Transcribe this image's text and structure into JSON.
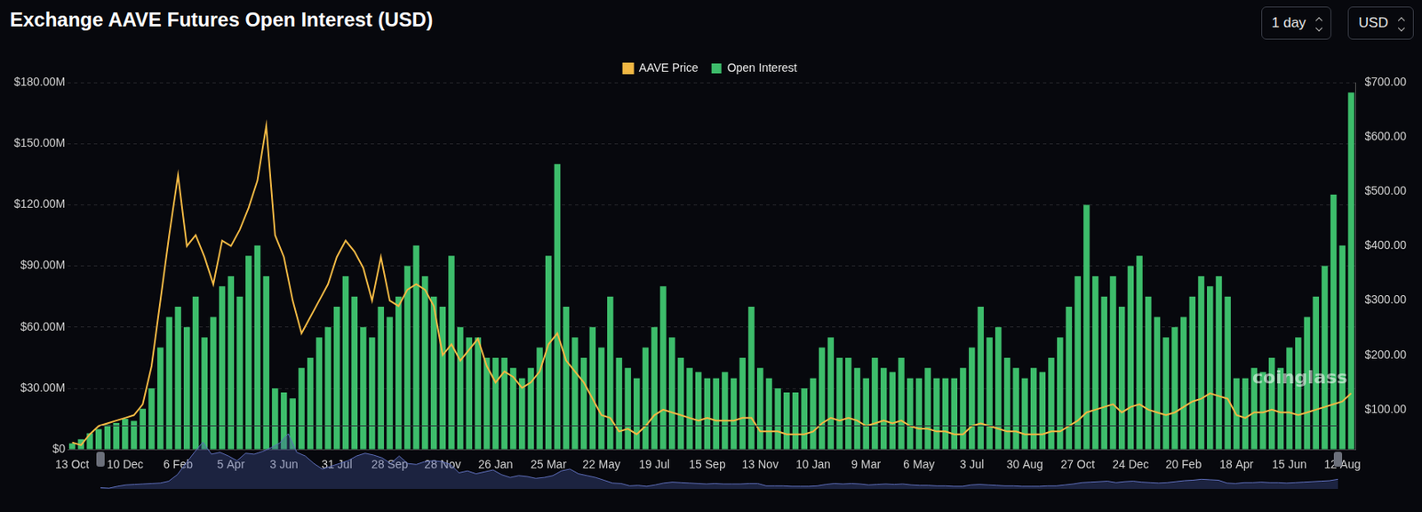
{
  "chart_data": {
    "type": "bar",
    "title": "Exchange AAVE Futures Open Interest (USD)",
    "annotations": [
      "coinglass"
    ],
    "legend": "top",
    "grid": true,
    "categories": [
      "13 Oct",
      null,
      null,
      null,
      null,
      null,
      "10 Dec",
      null,
      null,
      null,
      null,
      null,
      "6 Feb",
      null,
      null,
      null,
      null,
      null,
      "5 Apr",
      null,
      null,
      null,
      null,
      null,
      "3 Jun",
      null,
      null,
      null,
      null,
      null,
      "31 Jul",
      null,
      null,
      null,
      null,
      null,
      "28 Sep",
      null,
      null,
      null,
      null,
      null,
      "28 Nov",
      null,
      null,
      null,
      null,
      null,
      "26 Jan",
      null,
      null,
      null,
      null,
      null,
      "25 Mar",
      null,
      null,
      null,
      null,
      null,
      "22 May",
      null,
      null,
      null,
      null,
      null,
      "19 Jul",
      null,
      null,
      null,
      null,
      null,
      "15 Sep",
      null,
      null,
      null,
      null,
      null,
      "13 Nov",
      null,
      null,
      null,
      null,
      null,
      "10 Jan",
      null,
      null,
      null,
      null,
      null,
      "9 Mar",
      null,
      null,
      null,
      null,
      null,
      "6 May",
      null,
      null,
      null,
      null,
      null,
      "3 Jul",
      null,
      null,
      null,
      null,
      null,
      "30 Aug",
      null,
      null,
      null,
      null,
      null,
      "27 Oct",
      null,
      null,
      null,
      null,
      null,
      "24 Dec",
      null,
      null,
      null,
      null,
      null,
      "20 Feb",
      null,
      null,
      null,
      null,
      null,
      "18 Apr",
      null,
      null,
      null,
      null,
      null,
      "15 Jun",
      null,
      null,
      null,
      null,
      null,
      "12 Aug",
      null
    ],
    "series": [
      {
        "name": "AAVE Price",
        "type": "line",
        "color": "#f2b844",
        "axis": "y2",
        "values": [
          40,
          35,
          55,
          70,
          75,
          80,
          85,
          90,
          110,
          180,
          300,
          420,
          530,
          400,
          420,
          380,
          330,
          410,
          400,
          430,
          470,
          520,
          620,
          420,
          380,
          300,
          240,
          270,
          300,
          330,
          380,
          410,
          390,
          360,
          300,
          380,
          300,
          290,
          320,
          330,
          320,
          290,
          200,
          220,
          190,
          210,
          230,
          180,
          150,
          170,
          160,
          140,
          150,
          170,
          220,
          240,
          190,
          170,
          150,
          120,
          90,
          85,
          60,
          65,
          55,
          70,
          90,
          100,
          95,
          90,
          85,
          80,
          85,
          80,
          80,
          80,
          85,
          85,
          60,
          60,
          60,
          55,
          55,
          55,
          60,
          75,
          85,
          80,
          85,
          80,
          70,
          75,
          80,
          75,
          80,
          70,
          65,
          65,
          60,
          60,
          55,
          55,
          70,
          75,
          70,
          65,
          60,
          60,
          55,
          55,
          55,
          60,
          60,
          70,
          80,
          95,
          100,
          105,
          110,
          95,
          105,
          110,
          100,
          95,
          90,
          95,
          105,
          115,
          120,
          130,
          125,
          120,
          90,
          85,
          95,
          95,
          100,
          95,
          95,
          90,
          95,
          100,
          105,
          110,
          115,
          130
        ]
      },
      {
        "name": "Open Interest",
        "type": "bar",
        "color": "#3dbd6b",
        "values": [
          3000000,
          5000000,
          8000000,
          10000000,
          12000000,
          13000000,
          15000000,
          14000000,
          20000000,
          30000000,
          50000000,
          65000000,
          70000000,
          60000000,
          75000000,
          55000000,
          65000000,
          80000000,
          85000000,
          75000000,
          95000000,
          100000000,
          85000000,
          30000000,
          28000000,
          25000000,
          40000000,
          45000000,
          55000000,
          60000000,
          70000000,
          85000000,
          75000000,
          60000000,
          55000000,
          70000000,
          65000000,
          75000000,
          90000000,
          100000000,
          85000000,
          75000000,
          70000000,
          95000000,
          60000000,
          55000000,
          55000000,
          45000000,
          45000000,
          45000000,
          40000000,
          35000000,
          40000000,
          50000000,
          95000000,
          140000000,
          70000000,
          55000000,
          45000000,
          60000000,
          50000000,
          75000000,
          45000000,
          40000000,
          35000000,
          50000000,
          60000000,
          80000000,
          55000000,
          45000000,
          40000000,
          38000000,
          35000000,
          35000000,
          38000000,
          35000000,
          45000000,
          70000000,
          40000000,
          35000000,
          30000000,
          28000000,
          28000000,
          30000000,
          35000000,
          50000000,
          55000000,
          45000000,
          45000000,
          40000000,
          35000000,
          45000000,
          40000000,
          38000000,
          45000000,
          35000000,
          35000000,
          40000000,
          35000000,
          35000000,
          35000000,
          40000000,
          50000000,
          70000000,
          55000000,
          60000000,
          45000000,
          40000000,
          35000000,
          40000000,
          38000000,
          45000000,
          55000000,
          70000000,
          85000000,
          120000000,
          85000000,
          75000000,
          85000000,
          70000000,
          90000000,
          95000000,
          75000000,
          65000000,
          55000000,
          60000000,
          65000000,
          75000000,
          85000000,
          80000000,
          85000000,
          75000000,
          35000000,
          35000000,
          40000000,
          38000000,
          45000000,
          40000000,
          50000000,
          55000000,
          65000000,
          75000000,
          90000000,
          125000000,
          100000000,
          175000000
        ]
      }
    ],
    "ylim": [
      0,
      180000000
    ],
    "yticks": [
      {
        "value": 0,
        "label": "$0"
      },
      {
        "value": 30000000,
        "label": "$30.00M"
      },
      {
        "value": 60000000,
        "label": "$60.00M"
      },
      {
        "value": 90000000,
        "label": "$90.00M"
      },
      {
        "value": 120000000,
        "label": "$120.00M"
      },
      {
        "value": 150000000,
        "label": "$150.00M"
      },
      {
        "value": 180000000,
        "label": "$180.00M"
      }
    ],
    "y2lim": [
      27,
      700
    ],
    "y2ticks": [
      {
        "value": 100,
        "label": "$100.00"
      },
      {
        "value": 200,
        "label": "$200.00"
      },
      {
        "value": 300,
        "label": "$300.00"
      },
      {
        "value": 400,
        "label": "$400.00"
      },
      {
        "value": 500,
        "label": "$500.00"
      },
      {
        "value": 600,
        "label": "$600.00"
      },
      {
        "value": 700,
        "label": "$700.00"
      }
    ]
  },
  "controls": [
    "1 day",
    "USD"
  ]
}
